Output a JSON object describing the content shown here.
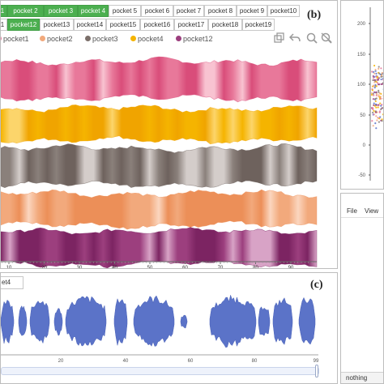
{
  "panel_b": {
    "label": "(b)",
    "tabs": [
      {
        "label": "1",
        "active": true
      },
      {
        "label": "pocket 2",
        "active": true
      },
      {
        "label": "pocket 3",
        "active": true
      },
      {
        "label": "pocket 4",
        "active": true
      },
      {
        "label": "pocket 5",
        "active": false
      },
      {
        "label": "pocket 6",
        "active": false
      },
      {
        "label": "pocket 7",
        "active": false
      },
      {
        "label": "pocket 8",
        "active": false
      },
      {
        "label": "pocket 9",
        "active": false
      },
      {
        "label": "pocket10",
        "active": false
      },
      {
        "label": "1",
        "active": false
      },
      {
        "label": "pocket12",
        "active": true
      },
      {
        "label": "pocket13",
        "active": false
      },
      {
        "label": "pocket14",
        "active": false
      },
      {
        "label": "pocket15",
        "active": false
      },
      {
        "label": "pocket16",
        "active": false
      },
      {
        "label": "pocket17",
        "active": false
      },
      {
        "label": "pocket18",
        "active": false
      },
      {
        "label": "pocket19",
        "active": false
      }
    ],
    "legend": [
      {
        "label": "pocket1",
        "color": "#e8789a"
      },
      {
        "label": "pocket2",
        "color": "#f2a97c"
      },
      {
        "label": "pocket3",
        "color": "#7b6f6a"
      },
      {
        "label": "pocket4",
        "color": "#f5b400"
      },
      {
        "label": "pocket12",
        "color": "#9c3f7e"
      }
    ],
    "toolbox_icons": [
      "restore-icon",
      "undo-icon",
      "zoom-icon",
      "reset-zoom-icon"
    ],
    "x_ticks": [
      "10",
      "20",
      "30",
      "40",
      "50",
      "60",
      "70",
      "80",
      "90"
    ],
    "bands": [
      {
        "name": "pocket1",
        "color": "#e8789a",
        "dark": "#d94d7a",
        "light": "#f8c3d1"
      },
      {
        "name": "pocket4",
        "color": "#f5b400",
        "dark": "#f0a400",
        "light": "#fcd56b"
      },
      {
        "name": "pocket3",
        "color": "#8a807b",
        "dark": "#6e625d",
        "light": "#d4cdca"
      },
      {
        "name": "pocket2",
        "color": "#f2a97c",
        "dark": "#ec8f58",
        "light": "#fbd6bf"
      },
      {
        "name": "pocket12",
        "color": "#9c3f7e",
        "dark": "#7c2462",
        "light": "#d8a3c6"
      }
    ]
  },
  "panel_c": {
    "label": "(c)",
    "input_value": "et4",
    "x_ticks": [
      "20",
      "40",
      "60",
      "80",
      "99"
    ],
    "color": "#5b73c8"
  },
  "scatter_panel": {
    "y_ticks": [
      "200",
      "150",
      "100",
      "50",
      "0",
      "-50"
    ]
  },
  "menu_panel": {
    "menu": [
      "File",
      "View"
    ],
    "status": "nothing"
  }
}
